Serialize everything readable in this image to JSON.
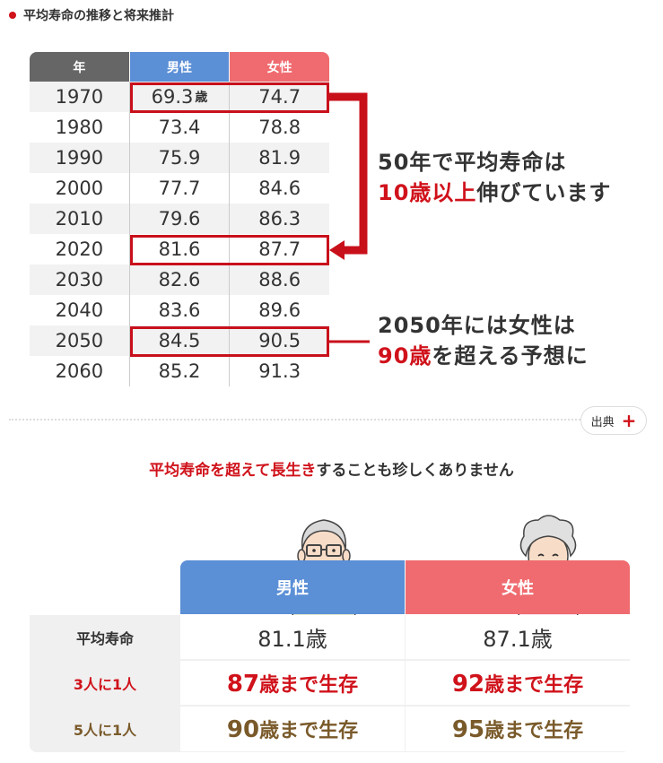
{
  "heading": "平均寿命の推移と将来推計",
  "table": {
    "headers": [
      "年",
      "男性",
      "女性"
    ],
    "unit": "歳",
    "rows": [
      {
        "year": "1970",
        "male": "69.3",
        "female": "74.7"
      },
      {
        "year": "1980",
        "male": "73.4",
        "female": "78.8"
      },
      {
        "year": "1990",
        "male": "75.9",
        "female": "81.9"
      },
      {
        "year": "2000",
        "male": "77.7",
        "female": "84.6"
      },
      {
        "year": "2010",
        "male": "79.6",
        "female": "86.3"
      },
      {
        "year": "2020",
        "male": "81.6",
        "female": "87.7"
      },
      {
        "year": "2030",
        "male": "82.6",
        "female": "88.6"
      },
      {
        "year": "2040",
        "male": "83.6",
        "female": "89.6"
      },
      {
        "year": "2050",
        "male": "84.5",
        "female": "90.5"
      },
      {
        "year": "2060",
        "male": "85.2",
        "female": "91.3"
      }
    ]
  },
  "callout1": {
    "line1": "50年で平均寿命は",
    "line2_red": "10歳以上",
    "line2_rest": "伸びています"
  },
  "callout2": {
    "line1": "2050年には女性は",
    "line2_red": "90歳",
    "line2_rest": "を超える予想に"
  },
  "source_label": "出典",
  "subtitle": {
    "red": "平均寿命を超えて長生き",
    "rest": "することも珍しくありません"
  },
  "bottom": {
    "male_label": "男性",
    "female_label": "女性",
    "rows": [
      {
        "label": "平均寿命",
        "male": "81.1歳",
        "female": "87.1歳"
      },
      {
        "label": "3人に1人",
        "male_num": "87",
        "male_suffix": "歳まで生存",
        "female_num": "92",
        "female_suffix": "歳まで生存"
      },
      {
        "label": "5人に1人",
        "male_num": "90",
        "male_suffix": "歳まで生存",
        "female_num": "95",
        "female_suffix": "歳まで生存"
      }
    ]
  },
  "colors": {
    "accent_red": "#d0121b",
    "male_blue": "#5b8fd6",
    "female_red": "#ef6b6f",
    "brown": "#7a5a2a"
  },
  "icons": [
    "elderly-man-icon",
    "elderly-woman-icon",
    "plus-icon"
  ],
  "chart_data": {
    "type": "table",
    "title": "平均寿命の推移と将来推計",
    "categories": [
      "1970",
      "1980",
      "1990",
      "2000",
      "2010",
      "2020",
      "2030",
      "2040",
      "2050",
      "2060"
    ],
    "series": [
      {
        "name": "男性",
        "values": [
          69.3,
          73.4,
          75.9,
          77.7,
          79.6,
          81.6,
          82.6,
          83.6,
          84.5,
          85.2
        ]
      },
      {
        "name": "女性",
        "values": [
          74.7,
          78.8,
          81.9,
          84.6,
          86.3,
          87.7,
          88.6,
          89.6,
          90.5,
          91.3
        ]
      }
    ]
  }
}
